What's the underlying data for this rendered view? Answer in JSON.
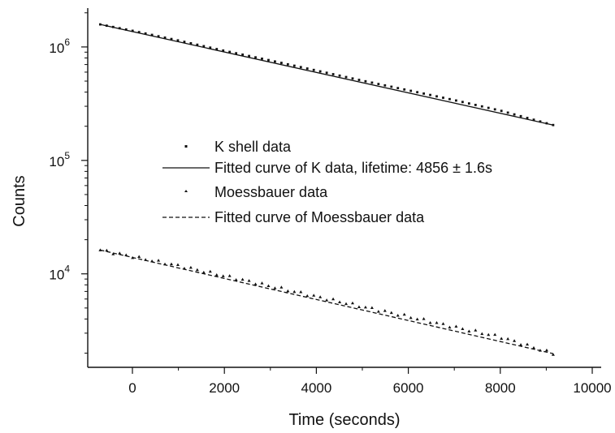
{
  "chart_data": {
    "type": "scatter",
    "title": "",
    "xlabel": "Time (seconds)",
    "ylabel": "Counts",
    "y_scale": "log",
    "xlim": [
      -1000,
      10000
    ],
    "ylim": [
      1500,
      2200000
    ],
    "x_ticks": [
      {
        "value": 0,
        "label": "0"
      },
      {
        "value": 2000,
        "label": "2000"
      },
      {
        "value": 4000,
        "label": "4000"
      },
      {
        "value": 6000,
        "label": "6000"
      },
      {
        "value": 8000,
        "label": "8000"
      },
      {
        "value": 10000,
        "label": "10000"
      }
    ],
    "y_ticks": [
      {
        "value": 10000,
        "base": "10",
        "exp": "4"
      },
      {
        "value": 100000,
        "base": "10",
        "exp": "5"
      },
      {
        "value": 1000000,
        "base": "10",
        "exp": "6"
      }
    ],
    "grid": false,
    "legend_position": "center",
    "series": [
      {
        "name": "K shell data",
        "kind": "points",
        "marker": "square",
        "x": [
          -700,
          0,
          1000,
          2000,
          3000,
          4000,
          5000,
          6000,
          7000,
          8000,
          9150
        ],
        "y": [
          1580000,
          1390000,
          1140000,
          925000,
          760000,
          620000,
          505000,
          415000,
          340000,
          275000,
          205000
        ]
      },
      {
        "name": "Fitted curve of K data, lifetime: 4856 ± 1.6s",
        "kind": "line",
        "dash": "solid",
        "x": [
          -700,
          9150
        ],
        "y": [
          1580000,
          205000
        ]
      },
      {
        "name": "Moessbauer data",
        "kind": "points",
        "marker": "triangle",
        "x": [
          -700,
          0,
          1000,
          2000,
          3000,
          4000,
          5000,
          6000,
          7000,
          8000,
          9150
        ],
        "y": [
          16200,
          14200,
          11800,
          9600,
          7800,
          6300,
          5150,
          4200,
          3400,
          2780,
          1980
        ]
      },
      {
        "name": "Fitted curve of Moessbauer data",
        "kind": "line",
        "dash": "dashed",
        "x": [
          -700,
          9150
        ],
        "y": [
          16200,
          1980
        ]
      }
    ]
  },
  "colors": {
    "ink": "#111111",
    "background": "#ffffff"
  }
}
